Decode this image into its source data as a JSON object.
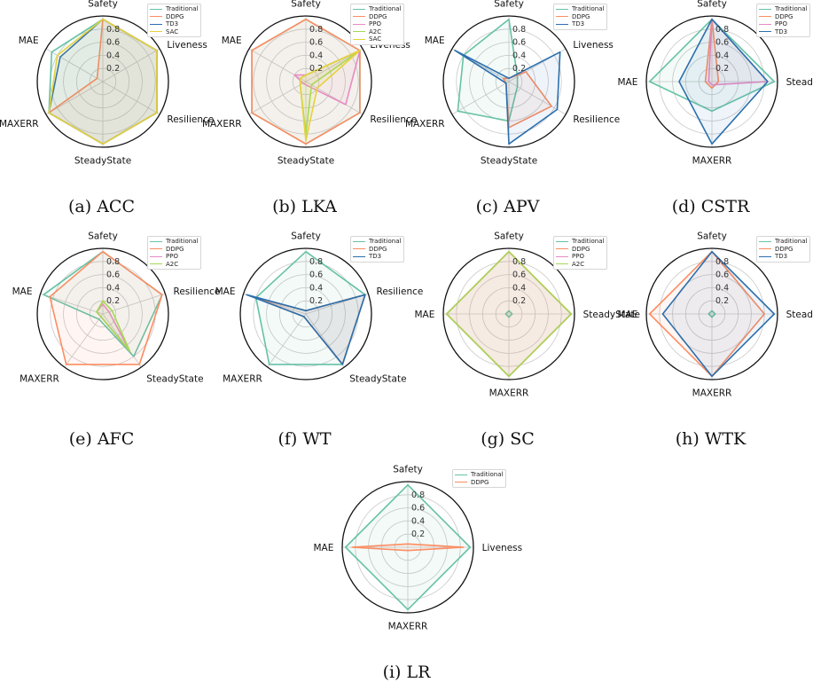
{
  "colors": {
    "Traditional": "#66c2a5",
    "DDPG": "#fc8d62",
    "TD3": "#2c6fad",
    "PPO": "#e78ac3",
    "A2C": "#a6d854",
    "SAC": "#e5d23c"
  },
  "chart_data": [
    {
      "type": "radar",
      "caption": "(a) ACC",
      "axes": [
        "Safety",
        "Liveness",
        "Resilience",
        "SteadyState",
        "MAXERR",
        "MAE"
      ],
      "rticks": [
        "0.2",
        "0.4",
        "0.6",
        "0.8"
      ],
      "rlim": [
        0,
        1
      ],
      "grid": true,
      "legend_position": "top-right",
      "series": [
        {
          "name": "Traditional",
          "values": [
            0.95,
            0.95,
            0.95,
            0.95,
            0.95,
            0.9
          ]
        },
        {
          "name": "DDPG",
          "values": [
            0.95,
            0.95,
            0.95,
            0.95,
            0.95,
            0.1
          ]
        },
        {
          "name": "TD3",
          "values": [
            0.95,
            0.95,
            0.95,
            0.95,
            0.95,
            0.75
          ]
        },
        {
          "name": "SAC",
          "values": [
            0.95,
            0.95,
            0.95,
            0.95,
            0.95,
            0.8
          ]
        }
      ]
    },
    {
      "type": "radar",
      "caption": "(b) LKA",
      "axes": [
        "Safety",
        "Liveness",
        "Resilience",
        "SteadyState",
        "MAXERR",
        "MAE"
      ],
      "rticks": [
        "0.2",
        "0.4",
        "0.6",
        "0.8"
      ],
      "rlim": [
        0,
        1
      ],
      "grid": true,
      "legend_position": "top-right",
      "series": [
        {
          "name": "Traditional",
          "values": [
            0.95,
            0.95,
            0.95,
            0.95,
            0.95,
            0.95
          ]
        },
        {
          "name": "DDPG",
          "values": [
            0.95,
            0.95,
            0.95,
            0.95,
            0.95,
            0.95
          ]
        },
        {
          "name": "PPO",
          "values": [
            0.1,
            0.95,
            0.7,
            0.05,
            0.05,
            0.2
          ]
        },
        {
          "name": "A2C",
          "values": [
            0.1,
            0.95,
            0.1,
            0.8,
            0.1,
            0.1
          ]
        },
        {
          "name": "SAC",
          "values": [
            0.1,
            0.95,
            0.2,
            0.9,
            0.1,
            0.1
          ]
        }
      ]
    },
    {
      "type": "radar",
      "caption": "(c) APV",
      "axes": [
        "Safety",
        "Liveness",
        "Resilience",
        "SteadyState",
        "MAXERR",
        "MAE"
      ],
      "rticks": [
        "0.2",
        "0.4",
        "0.6",
        "0.8"
      ],
      "rlim": [
        0,
        1
      ],
      "grid": true,
      "legend_position": "top-right",
      "series": [
        {
          "name": "Traditional",
          "values": [
            0.95,
            0.15,
            0.15,
            0.6,
            0.9,
            0.8
          ]
        },
        {
          "name": "DDPG",
          "values": [
            0.05,
            0.3,
            0.75,
            0.7,
            0.05,
            0.1
          ]
        },
        {
          "name": "TD3",
          "values": [
            0.05,
            0.9,
            0.85,
            0.95,
            0.05,
            0.95
          ]
        }
      ]
    },
    {
      "type": "radar",
      "caption": "(d) CSTR",
      "axes": [
        "Safety",
        "SteadyState",
        "MAXERR",
        "MAE"
      ],
      "rticks": [
        "0.2",
        "0.4",
        "0.6",
        "0.8"
      ],
      "rlim": [
        0,
        1
      ],
      "grid": true,
      "legend_position": "top-right",
      "series": [
        {
          "name": "Traditional",
          "values": [
            0.95,
            0.95,
            0.45,
            0.95
          ]
        },
        {
          "name": "DDPG",
          "values": [
            0.95,
            0.1,
            0.1,
            0.1
          ]
        },
        {
          "name": "PPO",
          "values": [
            0.95,
            0.85,
            0.05,
            0.05
          ]
        },
        {
          "name": "TD3",
          "values": [
            0.95,
            0.85,
            0.95,
            0.5
          ]
        }
      ]
    },
    {
      "type": "radar",
      "caption": "(e) AFC",
      "axes": [
        "Safety",
        "Resilience",
        "SteadyState",
        "MAXERR",
        "MAE"
      ],
      "rticks": [
        "0.2",
        "0.4",
        "0.6",
        "0.8"
      ],
      "rlim": [
        0,
        1
      ],
      "grid": true,
      "legend_position": "top-right",
      "series": [
        {
          "name": "Traditional",
          "values": [
            0.95,
            0.95,
            0.8,
            0.1,
            0.95
          ]
        },
        {
          "name": "DDPG",
          "values": [
            0.95,
            0.95,
            0.95,
            0.95,
            0.85
          ]
        },
        {
          "name": "PPO",
          "values": [
            0.15,
            0.1,
            0.7,
            0.05,
            0.1
          ]
        },
        {
          "name": "A2C",
          "values": [
            0.2,
            0.15,
            0.7,
            0.05,
            0.1
          ]
        }
      ]
    },
    {
      "type": "radar",
      "caption": "(f) WT",
      "axes": [
        "Safety",
        "Resilience",
        "SteadyState",
        "MAXERR",
        "MAE"
      ],
      "rticks": [
        "0.2",
        "0.4",
        "0.6",
        "0.8"
      ],
      "rlim": [
        0,
        1
      ],
      "grid": true,
      "legend_position": "top-right",
      "series": [
        {
          "name": "Traditional",
          "values": [
            0.95,
            0.95,
            0.95,
            0.95,
            0.8
          ]
        },
        {
          "name": "DDPG",
          "values": [
            0.05,
            0.95,
            0.95,
            0.05,
            0.8
          ]
        },
        {
          "name": "TD3",
          "values": [
            0.05,
            0.95,
            0.95,
            0.05,
            0.95
          ]
        }
      ]
    },
    {
      "type": "radar",
      "caption": "(g) SC",
      "axes": [
        "Safety",
        "SteadyState",
        "MAXERR",
        "MAE"
      ],
      "rticks": [
        "0.2",
        "0.4",
        "0.6",
        "0.8"
      ],
      "rlim": [
        0,
        1
      ],
      "grid": true,
      "legend_position": "top-right",
      "series": [
        {
          "name": "Traditional",
          "values": [
            0.05,
            0.05,
            0.05,
            0.05
          ]
        },
        {
          "name": "DDPG",
          "values": [
            0.95,
            0.95,
            0.95,
            0.95
          ]
        },
        {
          "name": "PPO",
          "values": [
            0.95,
            0.95,
            0.95,
            0.95
          ]
        },
        {
          "name": "A2C",
          "values": [
            0.95,
            0.95,
            0.95,
            0.95
          ]
        }
      ]
    },
    {
      "type": "radar",
      "caption": "(h) WTK",
      "axes": [
        "Safety",
        "SteadyState",
        "MAXERR",
        "MAE"
      ],
      "rticks": [
        "0.2",
        "0.4",
        "0.6",
        "0.8"
      ],
      "rlim": [
        0,
        1
      ],
      "grid": true,
      "legend_position": "top-right",
      "series": [
        {
          "name": "Traditional",
          "values": [
            0.05,
            0.05,
            0.05,
            0.05
          ]
        },
        {
          "name": "DDPG",
          "values": [
            0.95,
            0.8,
            0.95,
            0.95
          ]
        },
        {
          "name": "TD3",
          "values": [
            0.95,
            0.95,
            0.95,
            0.75
          ]
        }
      ]
    },
    {
      "type": "radar",
      "caption": "(i) LR",
      "axes": [
        "Safety",
        "Liveness",
        "MAXERR",
        "MAE"
      ],
      "rticks": [
        "0.2",
        "0.4",
        "0.6",
        "0.8"
      ],
      "rlim": [
        0,
        1
      ],
      "grid": true,
      "legend_position": "top-right",
      "series": [
        {
          "name": "Traditional",
          "values": [
            0.95,
            0.95,
            0.95,
            0.95
          ]
        },
        {
          "name": "DDPG",
          "values": [
            0.05,
            0.85,
            0.05,
            0.85
          ]
        }
      ]
    }
  ]
}
